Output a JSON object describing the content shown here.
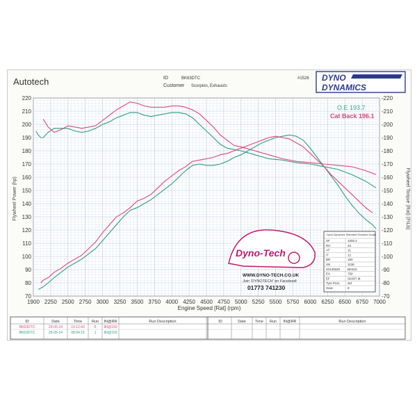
{
  "header": {
    "brand": "Autotech",
    "id_label": "ID",
    "id_value": "BK63DTC",
    "customer_label": "Customer",
    "customer_value": "Scorpion, Exhausts",
    "ref_no": "#1526",
    "logo_top": "DYNO",
    "logo_bottom": "DYNAMICS"
  },
  "chart_data": {
    "type": "line",
    "xlabel": "Engine Speed [Rat] (rpm)",
    "ylabel_left": "Flywheel Power (hp)",
    "ylabel_right": "Flywheel Torque (Rat) (FtLb)",
    "xlim": [
      1900,
      7000
    ],
    "ylim": [
      70,
      220
    ],
    "x_ticks": [
      "1900",
      "2250",
      "2500",
      "2750",
      "3000",
      "3250",
      "3500",
      "3750",
      "4000",
      "4250",
      "4500",
      "4750",
      "5000",
      "5250",
      "5500",
      "5750",
      "6000",
      "6250",
      "6500",
      "6750",
      "7000"
    ],
    "y_ticks_left": [
      "70",
      "80",
      "90",
      "100",
      "110",
      "120",
      "130",
      "140",
      "150",
      "160",
      "170",
      "180",
      "190",
      "200",
      "210",
      "220"
    ],
    "y_ticks_right": [
      "70",
      "80",
      "90",
      "100",
      "110",
      "120",
      "130",
      "140",
      "150",
      "160",
      "170",
      "180",
      "190",
      "200",
      "210",
      "220"
    ],
    "grid": true,
    "legend": [
      {
        "label": "O.E 193.7",
        "color": "#3aa889"
      },
      {
        "label": "Cat Back 196.1",
        "color": "#e0457b"
      }
    ],
    "series": [
      {
        "name": "O.E",
        "kind": "torque",
        "color": "#2c9c8a",
        "x": [
          1950,
          2000,
          2050,
          2100,
          2200,
          2300,
          2400,
          2500,
          2600,
          2700,
          2800,
          2900,
          3000,
          3100,
          3200,
          3300,
          3400,
          3500,
          3600,
          3700,
          3800,
          3900,
          4000,
          4100,
          4200,
          4300,
          4400,
          4500,
          4600,
          4700,
          4800,
          4900,
          5000,
          5200,
          5400,
          5600,
          5800,
          6000,
          6200,
          6400,
          6600,
          6800,
          6950
        ],
        "y": [
          195,
          192,
          190,
          190,
          194,
          197,
          197,
          197,
          195,
          194,
          195,
          197,
          200,
          202,
          205,
          207,
          209,
          209,
          207,
          206,
          207,
          208,
          209,
          209,
          208,
          205,
          200,
          195,
          190,
          185,
          182,
          181,
          180,
          177,
          174,
          173,
          171,
          170,
          168,
          166,
          162,
          157,
          152
        ]
      },
      {
        "name": "Cat Back",
        "kind": "torque",
        "color": "#e0457b",
        "x": [
          2100,
          2200,
          2300,
          2400,
          2500,
          2600,
          2700,
          2800,
          2900,
          3000,
          3100,
          3200,
          3300,
          3400,
          3500,
          3600,
          3700,
          3800,
          3900,
          4000,
          4100,
          4200,
          4300,
          4400,
          4500,
          4600,
          4700,
          4800,
          4900,
          5000,
          5200,
          5400,
          5600,
          5800,
          6000,
          6200,
          6400,
          6600,
          6800,
          6950
        ],
        "y": [
          204,
          198,
          194,
          196,
          199,
          198,
          197,
          198,
          199,
          203,
          207,
          211,
          214,
          217,
          216,
          214,
          213,
          213,
          213,
          214,
          214,
          213,
          211,
          208,
          203,
          198,
          192,
          188,
          184,
          183,
          180,
          177,
          174,
          172,
          171,
          170,
          169,
          168,
          165,
          162
        ]
      },
      {
        "name": "O.E",
        "kind": "power",
        "color": "#2c9c8a",
        "x": [
          2000,
          2100,
          2200,
          2300,
          2400,
          2500,
          2600,
          2700,
          2800,
          2900,
          3000,
          3100,
          3200,
          3300,
          3400,
          3500,
          3600,
          3700,
          3800,
          3900,
          4000,
          4100,
          4200,
          4300,
          4400,
          4500,
          4600,
          4700,
          4800,
          4900,
          5000,
          5100,
          5200,
          5300,
          5400,
          5500,
          5600,
          5700,
          5800,
          5900,
          6000,
          6100,
          6200,
          6300,
          6400,
          6500,
          6600,
          6700,
          6800,
          6900,
          6950
        ],
        "y": [
          75,
          77,
          80,
          84,
          88,
          92,
          95,
          98,
          102,
          106,
          112,
          118,
          124,
          130,
          135,
          137,
          140,
          143,
          147,
          151,
          155,
          160,
          165,
          169,
          170,
          169,
          169,
          170,
          172,
          175,
          177,
          180,
          183,
          186,
          188,
          190,
          191,
          192,
          191,
          188,
          182,
          175,
          168,
          161,
          154,
          146,
          139,
          133,
          128,
          124,
          121
        ]
      },
      {
        "name": "Cat Back",
        "kind": "power",
        "color": "#e0457b",
        "x": [
          2050,
          2100,
          2200,
          2300,
          2400,
          2500,
          2600,
          2700,
          2800,
          2900,
          3000,
          3100,
          3200,
          3300,
          3400,
          3500,
          3600,
          3700,
          3800,
          3900,
          4000,
          4100,
          4200,
          4300,
          4400,
          4500,
          4600,
          4700,
          4800,
          4900,
          5000,
          5100,
          5200,
          5300,
          5400,
          5500,
          5600,
          5700,
          5800,
          5900,
          6000,
          6100,
          6200,
          6300,
          6400,
          6500,
          6600,
          6700,
          6800,
          6900
        ],
        "y": [
          80,
          82,
          84,
          88,
          91,
          95,
          98,
          101,
          106,
          111,
          118,
          124,
          130,
          133,
          137,
          142,
          144,
          147,
          152,
          157,
          161,
          165,
          168,
          172,
          173,
          174,
          175,
          177,
          178,
          180,
          182,
          184,
          186,
          188,
          190,
          191,
          190,
          189,
          186,
          183,
          178,
          173,
          168,
          162,
          157,
          152,
          147,
          142,
          137,
          133
        ]
      }
    ]
  },
  "info_panel": {
    "title": "Dyno Dynamics Standard Shootout Graph",
    "rows": [
      {
        "key": "SF",
        "value": "1000.2"
      },
      {
        "key": "RH",
        "value": "33"
      },
      {
        "key": "AT",
        "value": "11"
      },
      {
        "key": "IT",
        "value": "12"
      },
      {
        "key": "BR",
        "value": "150"
      },
      {
        "key": "SN",
        "value": "1136"
      },
      {
        "key": "20140529",
        "value": "BK515"
      },
      {
        "key": "EX",
        "value": "750"
      },
      {
        "key": "EF",
        "value": "SK007 dt"
      },
      {
        "key": "Tyre Pres.",
        "value": "std"
      },
      {
        "key": "Gear",
        "value": "8"
      }
    ]
  },
  "badge": {
    "logo_text": "Dyno-Tech",
    "website": "WWW.DYNO-TECH.CO.UK",
    "facebook": "Join 'DYNOTECH' on Facebook",
    "phone": "01773 741230"
  },
  "runs_table": {
    "headers": [
      "ID",
      "Date",
      "Time",
      "Run",
      "IN@RR",
      "Run Description"
    ],
    "rows": [
      {
        "id": "BK63DTC",
        "date": "29-05-14",
        "time": "10:12:43",
        "run": "6",
        "inrr": "80@150",
        "desc": "",
        "color": "#e0457b"
      },
      {
        "id": "BK63DTC",
        "date": "29-05-14",
        "time": "08:54:15",
        "run": "1",
        "inrr": "80@150",
        "desc": "",
        "color": "#2c9c8a"
      }
    ]
  }
}
